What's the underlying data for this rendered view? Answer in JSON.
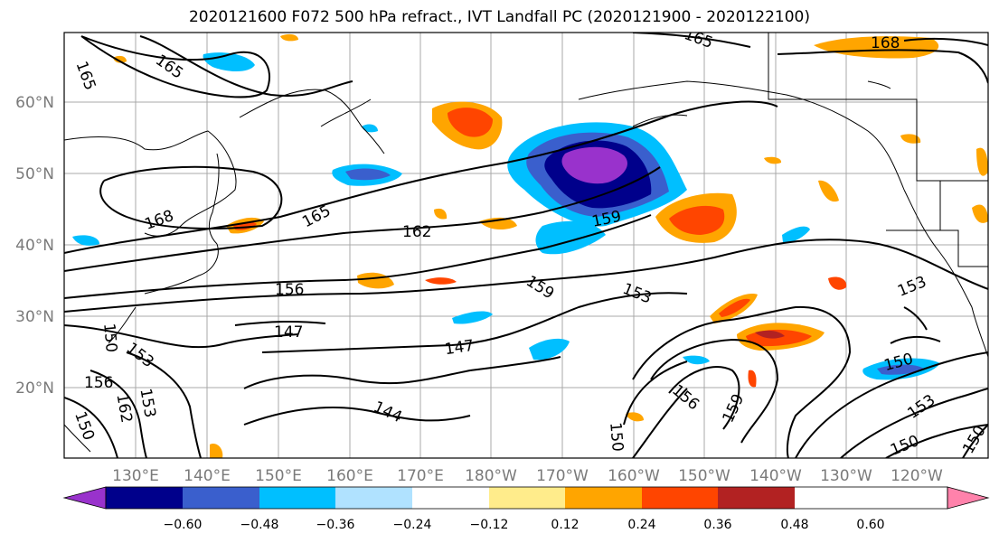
{
  "title": "2020121600 F072 500 hPa refract., IVT Landfall PC (2020121900 - 2020122100)",
  "map": {
    "lat_labels": [
      "60°N",
      "50°N",
      "40°N",
      "30°N",
      "20°N"
    ],
    "lon_labels": [
      "130°E",
      "140°E",
      "150°E",
      "160°E",
      "170°E",
      "180°W",
      "170°W",
      "160°W",
      "150°W",
      "140°W",
      "130°W",
      "120°W"
    ],
    "label_color": "#7a7a7a",
    "contour_labels": [
      "165",
      "165",
      "165",
      "168",
      "168",
      "165",
      "162",
      "159",
      "156",
      "153",
      "150",
      "147",
      "147",
      "153",
      "156",
      "159",
      "153",
      "150",
      "150",
      "153",
      "150",
      "150",
      "144",
      "159",
      "156",
      "150",
      "153",
      "162"
    ]
  },
  "colorbar": {
    "colors": [
      "#9932cc",
      "#00008b",
      "#3a5fcd",
      "#00bfff",
      "#b0e2ff",
      "#ffffff",
      "#ffec8b",
      "#ffa500",
      "#ff4500",
      "#b22222",
      "#ff82ab"
    ],
    "tick_labels": [
      "−0.60",
      "−0.48",
      "−0.36",
      "−0.24",
      "−0.12",
      "0.12",
      "0.24",
      "0.36",
      "0.48",
      "0.60"
    ]
  }
}
